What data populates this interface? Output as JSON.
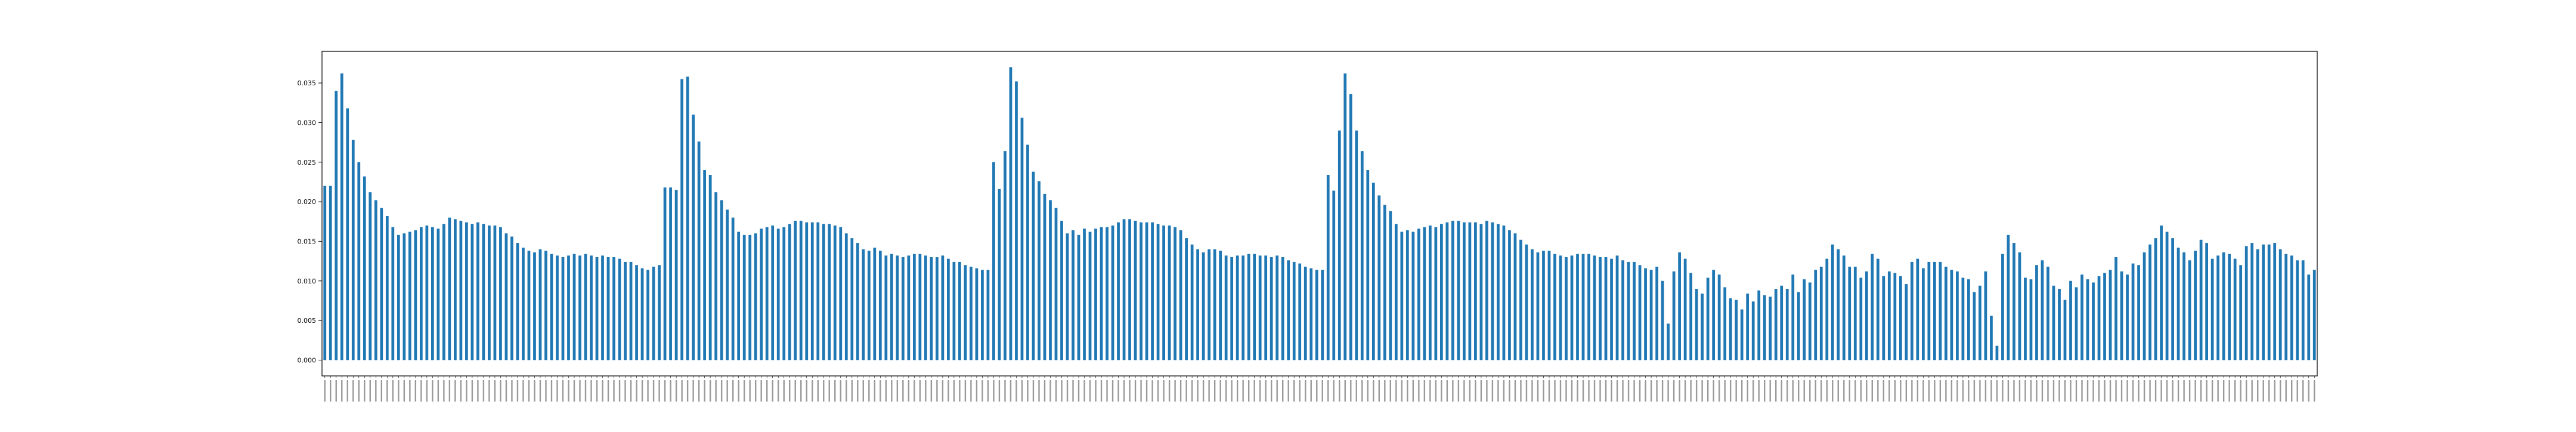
{
  "chart_data": {
    "type": "bar",
    "title": "",
    "xlabel": "",
    "ylabel": "",
    "ylim": [
      -0.002,
      0.039
    ],
    "yticks": [
      "0.000",
      "0.005",
      "0.010",
      "0.015",
      "0.020",
      "0.025",
      "0.030",
      "0.035"
    ],
    "grid": false,
    "bar_color": "#1f77b4",
    "x_tick_labels_visible": false,
    "values": [
      0.022,
      0.022,
      0.034,
      0.0362,
      0.0318,
      0.0278,
      0.025,
      0.0232,
      0.0212,
      0.0202,
      0.0192,
      0.0182,
      0.0168,
      0.0158,
      0.016,
      0.0162,
      0.0164,
      0.0168,
      0.017,
      0.0168,
      0.0166,
      0.0172,
      0.018,
      0.0178,
      0.0176,
      0.0174,
      0.0172,
      0.0174,
      0.0172,
      0.017,
      0.017,
      0.0168,
      0.016,
      0.0156,
      0.0148,
      0.0142,
      0.0138,
      0.0136,
      0.014,
      0.0138,
      0.0134,
      0.0132,
      0.013,
      0.0132,
      0.0134,
      0.0132,
      0.0134,
      0.0132,
      0.013,
      0.0132,
      0.013,
      0.013,
      0.0128,
      0.0124,
      0.0124,
      0.012,
      0.0116,
      0.0114,
      0.0118,
      0.012,
      0.0218,
      0.0218,
      0.0215,
      0.0355,
      0.0358,
      0.031,
      0.0276,
      0.024,
      0.0234,
      0.0212,
      0.0202,
      0.019,
      0.018,
      0.0162,
      0.0158,
      0.0158,
      0.016,
      0.0166,
      0.0168,
      0.017,
      0.0166,
      0.0168,
      0.0172,
      0.0176,
      0.0176,
      0.0174,
      0.0174,
      0.0174,
      0.0172,
      0.0172,
      0.017,
      0.0168,
      0.016,
      0.0154,
      0.0148,
      0.014,
      0.0138,
      0.0142,
      0.0138,
      0.0132,
      0.0134,
      0.0132,
      0.013,
      0.0132,
      0.0134,
      0.0134,
      0.0132,
      0.013,
      0.013,
      0.0132,
      0.0128,
      0.0124,
      0.0124,
      0.012,
      0.0118,
      0.0116,
      0.0114,
      0.0114,
      0.025,
      0.0216,
      0.0264,
      0.037,
      0.0352,
      0.0306,
      0.0272,
      0.0238,
      0.0226,
      0.021,
      0.0202,
      0.0192,
      0.0176,
      0.016,
      0.0164,
      0.0158,
      0.0166,
      0.0162,
      0.0166,
      0.0168,
      0.0168,
      0.017,
      0.0174,
      0.0178,
      0.0178,
      0.0176,
      0.0174,
      0.0174,
      0.0174,
      0.0172,
      0.017,
      0.017,
      0.0168,
      0.0164,
      0.0154,
      0.0146,
      0.014,
      0.0136,
      0.014,
      0.014,
      0.0138,
      0.0132,
      0.013,
      0.0132,
      0.0132,
      0.0134,
      0.0134,
      0.0132,
      0.0132,
      0.013,
      0.0132,
      0.013,
      0.0126,
      0.0124,
      0.0122,
      0.0118,
      0.0116,
      0.0114,
      0.0114,
      0.0234,
      0.0214,
      0.029,
      0.0362,
      0.0336,
      0.029,
      0.0264,
      0.024,
      0.0224,
      0.0208,
      0.0196,
      0.0188,
      0.0172,
      0.0162,
      0.0164,
      0.0162,
      0.0166,
      0.0168,
      0.017,
      0.0168,
      0.0172,
      0.0174,
      0.0176,
      0.0176,
      0.0174,
      0.0174,
      0.0174,
      0.0172,
      0.0176,
      0.0174,
      0.0172,
      0.017,
      0.0164,
      0.016,
      0.0152,
      0.0146,
      0.014,
      0.0136,
      0.0138,
      0.0138,
      0.0134,
      0.0132,
      0.013,
      0.0132,
      0.0134,
      0.0134,
      0.0134,
      0.0132,
      0.013,
      0.013,
      0.0128,
      0.0132,
      0.0126,
      0.0124,
      0.0124,
      0.012,
      0.0116,
      0.0114,
      0.0118,
      0.01,
      0.0046,
      0.0112,
      0.0136,
      0.0128,
      0.011,
      0.009,
      0.0084,
      0.0104,
      0.0114,
      0.0108,
      0.0092,
      0.0078,
      0.0076,
      0.0064,
      0.0084,
      0.0074,
      0.0088,
      0.0082,
      0.008,
      0.009,
      0.0094,
      0.009,
      0.0108,
      0.0086,
      0.0102,
      0.0098,
      0.0114,
      0.0118,
      0.0128,
      0.0146,
      0.014,
      0.0132,
      0.0118,
      0.0118,
      0.0104,
      0.0112,
      0.0134,
      0.0128,
      0.0106,
      0.0112,
      0.011,
      0.0106,
      0.0096,
      0.0124,
      0.0128,
      0.0116,
      0.0124,
      0.0124,
      0.0124,
      0.0118,
      0.0114,
      0.0112,
      0.0104,
      0.0102,
      0.0086,
      0.0094,
      0.0112,
      0.0056,
      0.0018,
      0.0134,
      0.0158,
      0.0148,
      0.0136,
      0.0104,
      0.0102,
      0.012,
      0.0126,
      0.0118,
      0.0094,
      0.009,
      0.0076,
      0.01,
      0.0092,
      0.0108,
      0.0102,
      0.0098,
      0.0106,
      0.011,
      0.0114,
      0.013,
      0.0112,
      0.0108,
      0.0122,
      0.012,
      0.0136,
      0.0146,
      0.0154,
      0.017,
      0.0162,
      0.0154,
      0.0142,
      0.0136,
      0.0126,
      0.0138,
      0.0152,
      0.0148,
      0.0128,
      0.0132,
      0.0136,
      0.0134,
      0.0128,
      0.012,
      0.0144,
      0.0148,
      0.014,
      0.0146,
      0.0146,
      0.0148,
      0.014,
      0.0134,
      0.0132,
      0.0126,
      0.0126,
      0.0108,
      0.0114
    ]
  }
}
